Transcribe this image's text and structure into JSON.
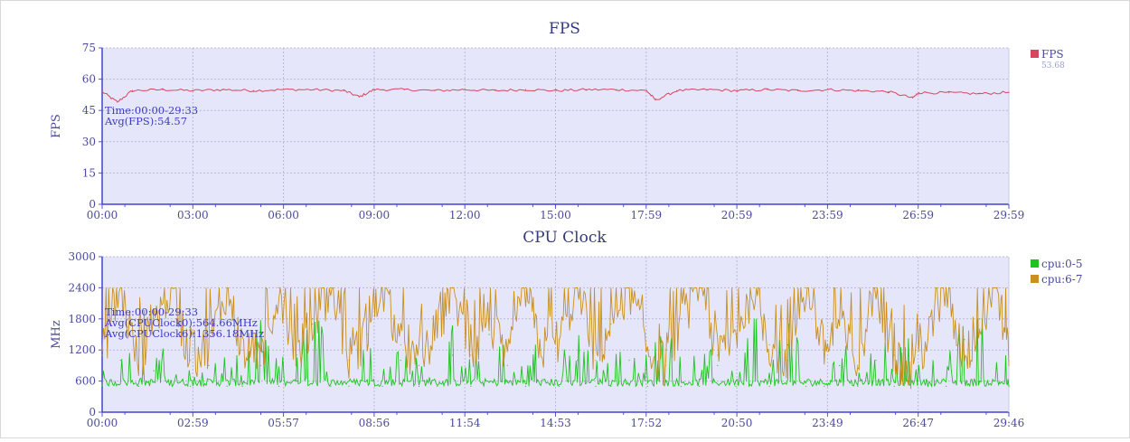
{
  "chart_data": [
    {
      "type": "line",
      "title": "FPS",
      "ylabel": "FPS",
      "xlabel": "",
      "ylim": [
        0,
        75
      ],
      "yticks": [
        "0",
        "15",
        "30",
        "45",
        "60",
        "75"
      ],
      "xtick_labels": [
        "00:00",
        "03:00",
        "06:00",
        "09:00",
        "12:00",
        "15:00",
        "17:59",
        "20:59",
        "23:59",
        "26:59",
        "29:59"
      ],
      "grid": true,
      "legend_position": "right",
      "annotations": [
        "Time:00:00-29:33",
        "Avg(FPS):54.57"
      ],
      "series": [
        {
          "name": "FPS",
          "legend_value": "53.68",
          "color": "#d9445f",
          "x": [
            0,
            0.5,
            1,
            2,
            3,
            4,
            5,
            6,
            7,
            8,
            8.5,
            9,
            10,
            11,
            12,
            13,
            14,
            15,
            16,
            17,
            18,
            18.3,
            19,
            20,
            21,
            22,
            23,
            24,
            25,
            26,
            26.8,
            27,
            28,
            29,
            29.98
          ],
          "values": [
            54,
            49,
            54.5,
            55,
            54.5,
            55,
            54.5,
            55,
            55,
            54.5,
            51.5,
            55,
            55,
            54.5,
            55,
            54.5,
            55,
            54.5,
            55,
            55,
            54.5,
            50,
            54.5,
            55,
            54.5,
            55,
            54.5,
            55,
            54.5,
            54,
            51,
            53.5,
            53.5,
            53,
            53.7
          ]
        }
      ]
    },
    {
      "type": "line",
      "title": "CPU Clock",
      "ylabel": "MHz",
      "xlabel": "",
      "ylim": [
        0,
        3000
      ],
      "yticks": [
        "0",
        "600",
        "1200",
        "1800",
        "2400",
        "3000"
      ],
      "xtick_labels": [
        "00:00",
        "02:59",
        "05:57",
        "08:56",
        "11:54",
        "14:53",
        "17:52",
        "20:50",
        "23:49",
        "26:47",
        "29:46"
      ],
      "grid": true,
      "legend_position": "right",
      "annotations": [
        "Time:00:00-29:33",
        "Avg(CPUClock0):564.66MHz",
        "Avg(CPUClock6):1356.18MHz"
      ],
      "series": [
        {
          "name": "cpu:0-5",
          "color": "#1ec41e",
          "x": [
            0,
            0.6,
            1.2,
            1.7,
            2.3,
            2.9,
            3.5,
            4.1,
            4.6,
            5.2,
            5.8,
            6.4,
            6.9,
            7.5,
            8.1,
            8.7,
            9.2,
            9.8,
            10.4,
            11,
            11.5,
            12.1,
            12.7,
            13.3,
            13.9,
            14.4,
            15,
            15.6,
            16.2,
            16.7,
            17.3,
            17.9,
            18.5,
            19,
            19.6,
            20.2,
            20.8,
            21.4,
            21.9,
            22.5,
            23.1,
            23.7,
            24.2,
            24.8,
            25.4,
            26,
            26.5,
            27.1,
            27.7,
            28.3,
            28.8,
            29.4,
            29.76
          ],
          "values": [
            500,
            1000,
            500,
            800,
            500,
            500,
            900,
            500,
            500,
            1200,
            500,
            600,
            1800,
            500,
            500,
            1300,
            500,
            1000,
            500,
            500,
            1100,
            500,
            1500,
            600,
            500,
            1200,
            500,
            1000,
            500,
            500,
            1000,
            500,
            1200,
            500,
            500,
            900,
            500,
            1600,
            500,
            1300,
            500,
            500,
            900,
            500,
            1000,
            500,
            900,
            500,
            500,
            1400,
            1800,
            600,
            500
          ]
        },
        {
          "name": "cpu:6-7",
          "color": "#c8901e",
          "x": [
            0,
            0.6,
            1.2,
            1.7,
            2.3,
            2.9,
            3.5,
            4.1,
            4.6,
            5.2,
            5.8,
            6.4,
            6.9,
            7.5,
            8.1,
            8.7,
            9.2,
            9.8,
            10.4,
            11,
            11.5,
            12.1,
            12.7,
            13.3,
            13.9,
            14.4,
            15,
            15.6,
            16.2,
            16.7,
            17.3,
            17.9,
            18.5,
            19,
            19.6,
            20.2,
            20.8,
            21.4,
            21.9,
            22.5,
            23.1,
            23.7,
            24.2,
            24.8,
            25.4,
            26,
            26.5,
            27.1,
            27.7,
            28.3,
            28.8,
            29.4,
            29.76
          ],
          "values": [
            1100,
            2400,
            900,
            1800,
            2400,
            1000,
            1300,
            2400,
            1200,
            900,
            2400,
            1100,
            1700,
            2400,
            1000,
            1500,
            2400,
            1300,
            900,
            1600,
            2400,
            1100,
            1800,
            900,
            2400,
            1200,
            1400,
            2400,
            1000,
            1700,
            2400,
            1200,
            900,
            1800,
            2400,
            1100,
            1500,
            2400,
            1300,
            1000,
            2400,
            1200,
            1700,
            900,
            2400,
            1100,
            700,
            1400,
            2400,
            1000,
            1600,
            2400,
            900
          ]
        }
      ]
    }
  ]
}
